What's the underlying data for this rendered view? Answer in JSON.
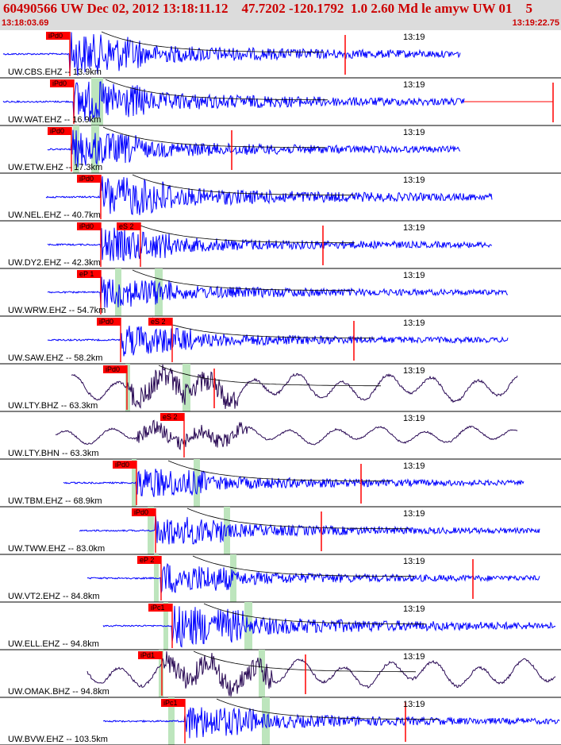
{
  "header": {
    "title": "60490566 UW Dec 02, 2012 13:18:11.12    47.7202 -120.1792  1.0 2.60 Md le amyw UW 01    5",
    "time_start": "13:18:03.69",
    "time_end": "13:19:22.75"
  },
  "colors": {
    "header_bg": "#dcdcdc",
    "header_text": "#cc0000",
    "trace_ehz": "#0000ff",
    "trace_bh": "#2a0a55",
    "pick": "#ff0000",
    "pick_box": "#ff0000",
    "window": "#bde5bd",
    "separator": "#000000"
  },
  "chart_data": {
    "type": "line",
    "title": "60490566 UW Dec 02, 2012 13:18:11.12    47.7202 -120.1792  1.0 2.60 Md le amyw UW 01    5",
    "x_range": [
      "13:18:03.69",
      "13:19:22.75"
    ],
    "x_tick_label": "13:19",
    "series": [
      {
        "name": "UW.CBS.EHZ -- 13.9km",
        "color": "blue",
        "p_pick": "iPd0",
        "s_pick": ""
      },
      {
        "name": "UW.WAT.EHZ -- 16.9km",
        "color": "blue",
        "p_pick": "iPd0",
        "s_pick": ""
      },
      {
        "name": "UW.ETW.EHZ -- 17.3km",
        "color": "blue",
        "p_pick": "iPd0",
        "s_pick": ""
      },
      {
        "name": "UW.NEL.EHZ -- 40.7km",
        "color": "blue",
        "p_pick": "iPd0",
        "s_pick": ""
      },
      {
        "name": "UW.DY2.EHZ -- 42.3km",
        "color": "blue",
        "p_pick": "iPd0",
        "s_pick": "eS 2"
      },
      {
        "name": "UW.WRW.EHZ -- 54.7km",
        "color": "blue",
        "p_pick": "eP 1",
        "s_pick": ""
      },
      {
        "name": "UW.SAW.EHZ -- 58.2km",
        "color": "blue",
        "p_pick": "iPd0",
        "s_pick": "eS 2"
      },
      {
        "name": "UW.LTY.BHZ -- 63.3km",
        "color": "dark",
        "p_pick": "iPd0",
        "s_pick": ""
      },
      {
        "name": "UW.LTY.BHN -- 63.3km",
        "color": "dark",
        "p_pick": "",
        "s_pick": "eS 2"
      },
      {
        "name": "UW.TBM.EHZ -- 68.9km",
        "color": "blue",
        "p_pick": "iPd0",
        "s_pick": ""
      },
      {
        "name": "UW.TWW.EHZ -- 83.0km",
        "color": "blue",
        "p_pick": "iPd0",
        "s_pick": ""
      },
      {
        "name": "UW.VT2.EHZ -- 84.8km",
        "color": "blue",
        "p_pick": "eP 2",
        "s_pick": ""
      },
      {
        "name": "UW.ELL.EHZ -- 94.8km",
        "color": "blue",
        "p_pick": "iPc1",
        "s_pick": ""
      },
      {
        "name": "UW.OMAK.BHZ -- 94.8km",
        "color": "dark",
        "p_pick": "iPd1",
        "s_pick": ""
      },
      {
        "name": "UW.BVW.EHZ -- 103.5km",
        "color": "blue",
        "p_pick": "iPc1",
        "s_pick": ""
      }
    ]
  }
}
